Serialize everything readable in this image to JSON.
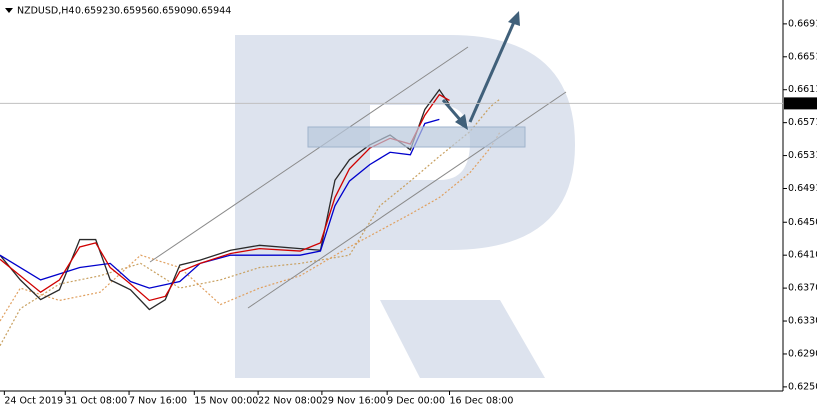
{
  "chart_data": {
    "type": "line",
    "title": "NZDUSD,H4",
    "ohlc": [
      0.65923,
      0.65956,
      0.65909,
      0.65944
    ],
    "last_price": 0.65944,
    "xlim": [
      0,
      540
    ],
    "xticks": [
      {
        "value": 3,
        "label": "24 Oct 2019"
      },
      {
        "value": 45,
        "label": "31 Oct 08:00"
      },
      {
        "value": 89,
        "label": "7 Nov 16:00"
      },
      {
        "value": 134,
        "label": "15 Nov 00:00"
      },
      {
        "value": 178,
        "label": "22 Nov 08:00"
      },
      {
        "value": 222,
        "label": "29 Nov 16:00"
      },
      {
        "value": 267,
        "label": "9 Dec 00:00"
      },
      {
        "value": 310,
        "label": "16 Dec 08:00"
      }
    ],
    "ylim": [
      0.6245,
      0.672
    ],
    "yticks": [
      {
        "value": 0.625,
        "label": "0.62500"
      },
      {
        "value": 0.629,
        "label": "0.62900"
      },
      {
        "value": 0.633,
        "label": "0.63300"
      },
      {
        "value": 0.637,
        "label": "0.63700"
      },
      {
        "value": 0.641,
        "label": "0.64100"
      },
      {
        "value": 0.645,
        "label": "0.64500"
      },
      {
        "value": 0.6491,
        "label": "0.64910"
      },
      {
        "value": 0.6531,
        "label": "0.65310"
      },
      {
        "value": 0.6571,
        "label": "0.65710"
      },
      {
        "value": 0.6611,
        "label": "0.66110"
      },
      {
        "value": 0.6651,
        "label": "0.66510"
      },
      {
        "value": 0.6691,
        "label": "0.66910"
      }
    ],
    "series": [
      {
        "color": "#c8a060",
        "dash": true,
        "x": [
          0,
          14,
          41,
          69,
          97,
          124,
          152,
          179,
          207,
          241,
          262,
          283,
          303,
          324,
          338,
          345
        ],
        "values": [
          0.63,
          0.6345,
          0.6375,
          0.6385,
          0.64,
          0.637,
          0.638,
          0.6395,
          0.64,
          0.641,
          0.647,
          0.65,
          0.653,
          0.656,
          0.659,
          0.66
        ]
      },
      {
        "color": "#e0a060",
        "dash": true,
        "x": [
          0,
          14,
          41,
          69,
          97,
          124,
          152,
          179,
          207,
          241,
          262,
          283,
          303,
          324,
          338,
          345
        ],
        "values": [
          0.633,
          0.637,
          0.6355,
          0.6365,
          0.641,
          0.6395,
          0.635,
          0.637,
          0.6385,
          0.642,
          0.644,
          0.646,
          0.648,
          0.651,
          0.654,
          0.656
        ]
      },
      {
        "color": "#2a2a2a",
        "dash": false,
        "x": [
          0,
          14,
          28,
          41,
          55,
          66,
          76,
          90,
          103,
          114,
          124,
          138,
          159,
          179,
          207,
          221,
          231,
          241,
          255,
          269,
          283,
          293,
          303,
          310
        ],
        "values": [
          0.641,
          0.638,
          0.6356,
          0.6368,
          0.6429,
          0.6429,
          0.638,
          0.6368,
          0.6344,
          0.6356,
          0.6398,
          0.6404,
          0.6416,
          0.6422,
          0.6418,
          0.6416,
          0.6501,
          0.6526,
          0.6544,
          0.6556,
          0.6538,
          0.6587,
          0.6611,
          0.6593
        ]
      },
      {
        "color": "#0000cc",
        "dash": false,
        "x": [
          0,
          14,
          28,
          55,
          76,
          90,
          103,
          124,
          138,
          159,
          207,
          221,
          231,
          241,
          255,
          269,
          283,
          293,
          303
        ],
        "values": [
          0.641,
          0.6395,
          0.638,
          0.6395,
          0.64,
          0.6378,
          0.637,
          0.6378,
          0.64,
          0.641,
          0.641,
          0.6415,
          0.647,
          0.65,
          0.652,
          0.6535,
          0.6532,
          0.657,
          0.6575
        ]
      },
      {
        "color": "#d00000",
        "dash": false,
        "x": [
          0,
          14,
          28,
          41,
          55,
          66,
          76,
          90,
          103,
          114,
          124,
          138,
          159,
          179,
          207,
          221,
          231,
          241,
          255,
          269,
          283,
          293,
          303,
          310
        ],
        "values": [
          0.6405,
          0.6385,
          0.6365,
          0.638,
          0.642,
          0.6425,
          0.6395,
          0.6375,
          0.6355,
          0.636,
          0.639,
          0.64,
          0.6412,
          0.6418,
          0.6415,
          0.6425,
          0.648,
          0.6515,
          0.654,
          0.6552,
          0.6545,
          0.658,
          0.6605,
          0.6598
        ]
      }
    ]
  }
}
